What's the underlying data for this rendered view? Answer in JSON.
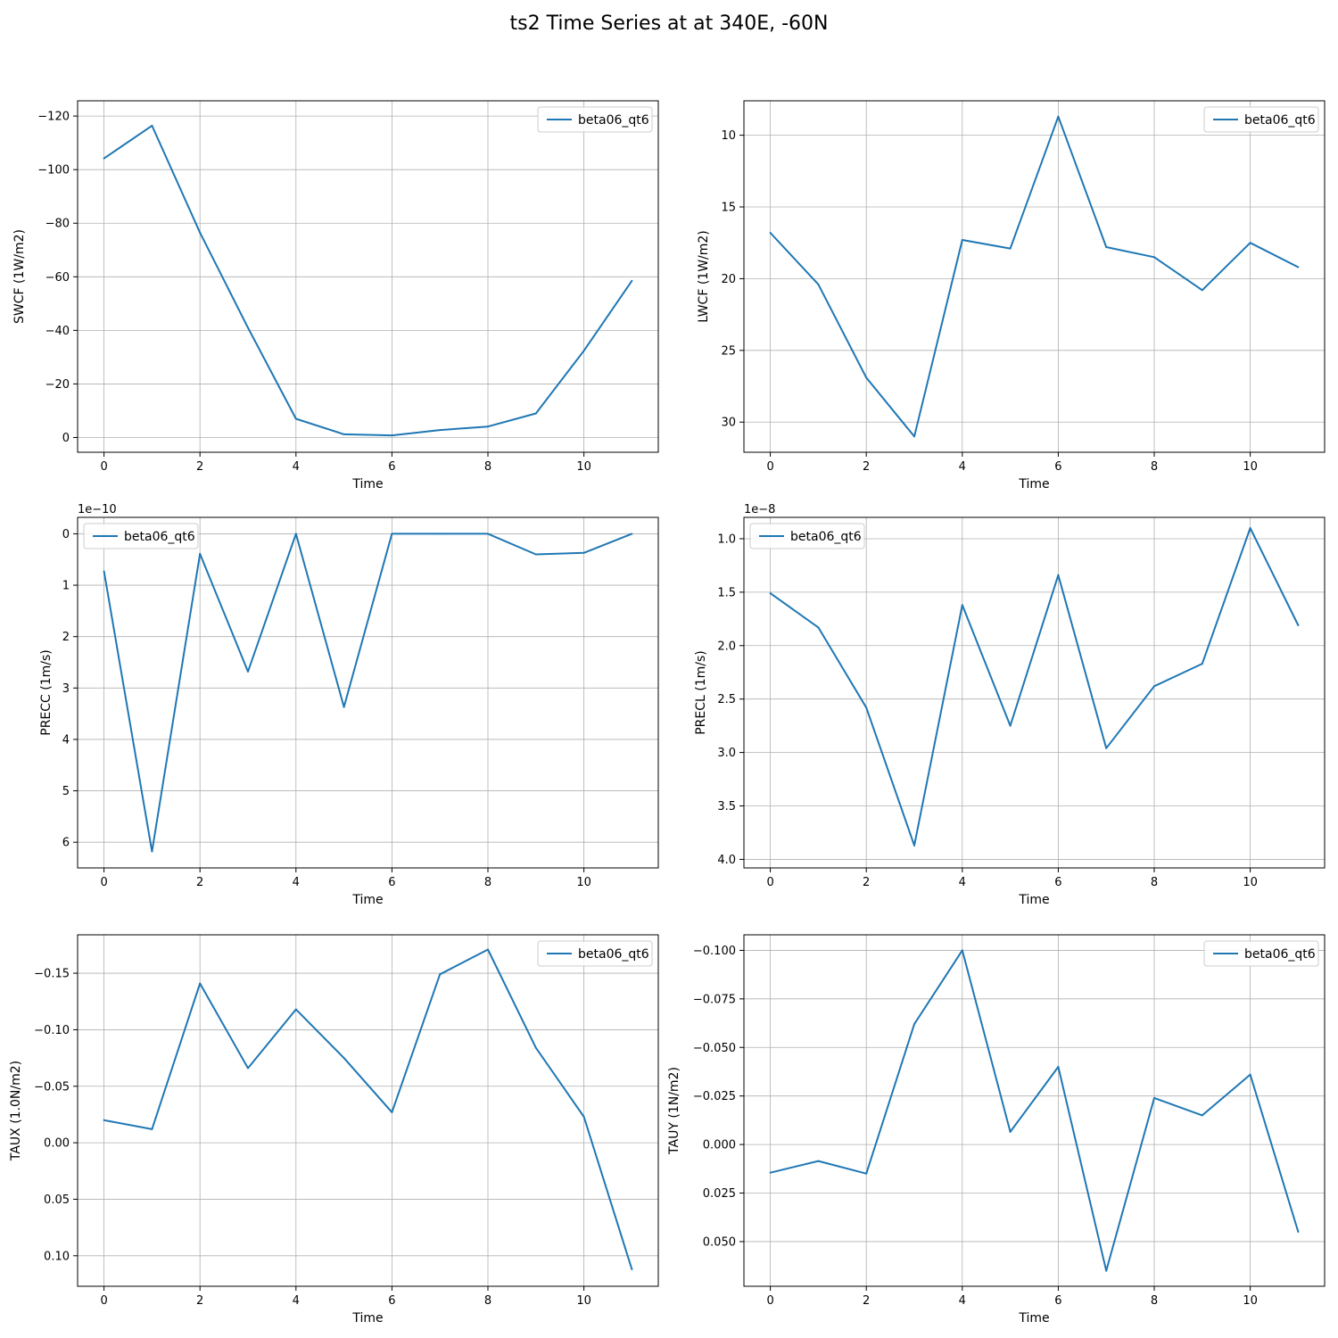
{
  "figure": {
    "title": "ts2 Time Series at at 340E, -60N"
  },
  "chart_data": [
    {
      "type": "line",
      "ylabel": "SWCF (1W/m2)",
      "xlabel": "Time",
      "multiplier": "",
      "x": [
        0,
        1,
        2,
        3,
        4,
        5,
        6,
        7,
        8,
        9,
        10,
        11
      ],
      "series": [
        {
          "name": "beta06_qt6",
          "color": "#1f77b4",
          "values": [
            -104.2,
            -116.4,
            -76.5,
            -41,
            -7,
            -1.2,
            -0.8,
            -2.8,
            -4.1,
            -9,
            -32.4,
            -58.5
          ]
        }
      ],
      "xlim": [
        -0.55,
        11.55
      ],
      "ylim": [
        -125.7,
        5.5
      ],
      "y_inverted": true,
      "xticks": [
        0,
        2,
        4,
        6,
        8,
        10
      ],
      "xtick_labels": [
        "0",
        "2",
        "4",
        "6",
        "8",
        "10"
      ],
      "yticks": [
        -120,
        -100,
        -80,
        -60,
        -40,
        -20,
        0
      ],
      "ytick_labels": [
        "−120",
        "−100",
        "−80",
        "−60",
        "−40",
        "−20",
        "0"
      ],
      "legend": "upper right",
      "grid": true
    },
    {
      "type": "line",
      "ylabel": "LWCF (1W/m2)",
      "xlabel": "Time",
      "multiplier": "",
      "x": [
        0,
        1,
        2,
        3,
        4,
        5,
        6,
        7,
        8,
        9,
        10,
        11
      ],
      "series": [
        {
          "name": "beta06_qt6",
          "color": "#1f77b4",
          "values": [
            16.8,
            20.4,
            26.9,
            31,
            17.3,
            17.9,
            8.7,
            17.8,
            18.5,
            20.8,
            17.5,
            19.2
          ]
        }
      ],
      "xlim": [
        -0.55,
        11.55
      ],
      "ylim": [
        7.6,
        32.1
      ],
      "y_inverted": true,
      "xticks": [
        0,
        2,
        4,
        6,
        8,
        10
      ],
      "xtick_labels": [
        "0",
        "2",
        "4",
        "6",
        "8",
        "10"
      ],
      "yticks": [
        10,
        15,
        20,
        25,
        30
      ],
      "ytick_labels": [
        "10",
        "15",
        "20",
        "25",
        "30"
      ],
      "legend": "upper right",
      "grid": true
    },
    {
      "type": "line",
      "ylabel": "PRECC (1m/s)",
      "xlabel": "Time",
      "multiplier": "1e−10",
      "x": [
        0,
        1,
        2,
        3,
        4,
        5,
        6,
        7,
        8,
        9,
        10,
        11
      ],
      "series": [
        {
          "name": "beta06_qt6",
          "color": "#1f77b4",
          "values": [
            0.73,
            6.18,
            0.39,
            2.68,
            0.0,
            3.37,
            0.0,
            0.0,
            0.0,
            0.4,
            0.37,
            0.0
          ]
        }
      ],
      "xlim": [
        -0.55,
        11.55
      ],
      "ylim": [
        -0.32,
        6.5
      ],
      "y_inverted": true,
      "xticks": [
        0,
        2,
        4,
        6,
        8,
        10
      ],
      "xtick_labels": [
        "0",
        "2",
        "4",
        "6",
        "8",
        "10"
      ],
      "yticks": [
        0,
        1,
        2,
        3,
        4,
        5,
        6
      ],
      "ytick_labels": [
        "0",
        "1",
        "2",
        "3",
        "4",
        "5",
        "6"
      ],
      "legend": "upper left",
      "grid": true
    },
    {
      "type": "line",
      "ylabel": "PRECL (1m/s)",
      "xlabel": "Time",
      "multiplier": "1e−8",
      "x": [
        0,
        1,
        2,
        3,
        4,
        5,
        6,
        7,
        8,
        9,
        10,
        11
      ],
      "series": [
        {
          "name": "beta06_qt6",
          "color": "#1f77b4",
          "values": [
            1.51,
            1.83,
            2.58,
            3.87,
            1.62,
            2.75,
            1.34,
            2.96,
            2.38,
            2.17,
            0.9,
            1.81
          ]
        }
      ],
      "xlim": [
        -0.55,
        11.55
      ],
      "ylim": [
        0.8,
        4.08
      ],
      "y_inverted": true,
      "xticks": [
        0,
        2,
        4,
        6,
        8,
        10
      ],
      "xtick_labels": [
        "0",
        "2",
        "4",
        "6",
        "8",
        "10"
      ],
      "yticks": [
        1.0,
        1.5,
        2.0,
        2.5,
        3.0,
        3.5,
        4.0
      ],
      "ytick_labels": [
        "1.0",
        "1.5",
        "2.0",
        "2.5",
        "3.0",
        "3.5",
        "4.0"
      ],
      "legend": "upper left",
      "grid": true
    },
    {
      "type": "line",
      "ylabel": "TAUX (1.0N/m2)",
      "xlabel": "Time",
      "multiplier": "",
      "x": [
        0,
        1,
        2,
        3,
        4,
        5,
        6,
        7,
        8,
        9,
        10,
        11
      ],
      "series": [
        {
          "name": "beta06_qt6",
          "color": "#1f77b4",
          "values": [
            -0.02,
            -0.012,
            -0.141,
            -0.066,
            -0.118,
            -0.075,
            -0.027,
            -0.149,
            -0.171,
            -0.084,
            -0.023,
            0.112
          ]
        }
      ],
      "xlim": [
        -0.55,
        11.55
      ],
      "ylim": [
        -0.184,
        0.127
      ],
      "y_inverted": true,
      "xticks": [
        0,
        2,
        4,
        6,
        8,
        10
      ],
      "xtick_labels": [
        "0",
        "2",
        "4",
        "6",
        "8",
        "10"
      ],
      "yticks": [
        -0.15,
        -0.1,
        -0.05,
        0,
        0.05,
        0.1
      ],
      "ytick_labels": [
        "−0.15",
        "−0.10",
        "−0.05",
        "0.00",
        "0.05",
        "0.10"
      ],
      "legend": "upper right",
      "grid": true
    },
    {
      "type": "line",
      "ylabel": "TAUY (1N/m2)",
      "xlabel": "Time",
      "multiplier": "",
      "x": [
        0,
        1,
        2,
        3,
        4,
        5,
        6,
        7,
        8,
        9,
        10,
        11
      ],
      "series": [
        {
          "name": "beta06_qt6",
          "color": "#1f77b4",
          "values": [
            0.0145,
            0.0085,
            0.015,
            -0.062,
            -0.1,
            -0.0065,
            -0.04,
            0.065,
            -0.024,
            -0.015,
            -0.036,
            0.045
          ]
        }
      ],
      "xlim": [
        -0.55,
        11.55
      ],
      "ylim": [
        -0.108,
        0.073
      ],
      "y_inverted": true,
      "xticks": [
        0,
        2,
        4,
        6,
        8,
        10
      ],
      "xtick_labels": [
        "0",
        "2",
        "4",
        "6",
        "8",
        "10"
      ],
      "yticks": [
        -0.1,
        -0.075,
        -0.05,
        -0.025,
        0,
        0.025,
        0.05
      ],
      "ytick_labels": [
        "−0.100",
        "−0.075",
        "−0.050",
        "−0.025",
        "0.000",
        "0.025",
        "0.050"
      ],
      "legend": "upper right",
      "grid": true
    }
  ]
}
